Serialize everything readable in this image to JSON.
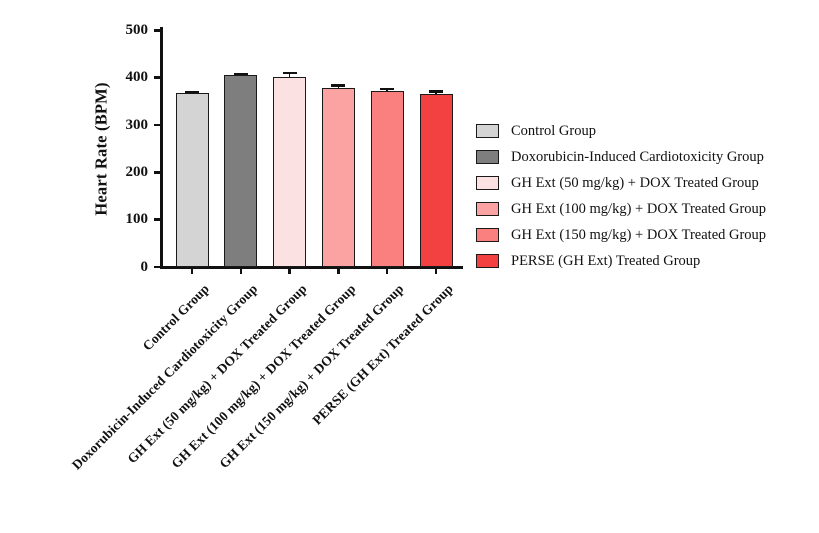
{
  "figure": {
    "background": "#ffffff",
    "axis_color": "#111111"
  },
  "chart_data": {
    "type": "bar",
    "title": "",
    "xlabel": "",
    "ylabel": "Heart Rate (BPM)",
    "ylim": [
      0,
      500
    ],
    "yticks": [
      0,
      100,
      200,
      300,
      400,
      500
    ],
    "grid": false,
    "legend_position": "right",
    "categories": [
      "Control Group",
      "Doxorubicin-Induced Cardiotoxicity Group",
      "GH Ext (50 mg/kg) + DOX Treated Group",
      "GH Ext (100 mg/kg) + DOX Treated Group",
      "GH Ext (150 mg/kg) + DOX Treated Group",
      "PERSE (GH Ext) Treated Group"
    ],
    "values": [
      367,
      405,
      402,
      378,
      372,
      365
    ],
    "errors": [
      3,
      3,
      8,
      5,
      4,
      6
    ],
    "error_style": "sem-cap-up",
    "bar_colors": [
      "#d4d4d4",
      "#7e7e7e",
      "#fce1e3",
      "#fba3a2",
      "#fa8080",
      "#f34040"
    ],
    "bar_border_color": "#1a1a1a",
    "error_color": "#111111"
  }
}
